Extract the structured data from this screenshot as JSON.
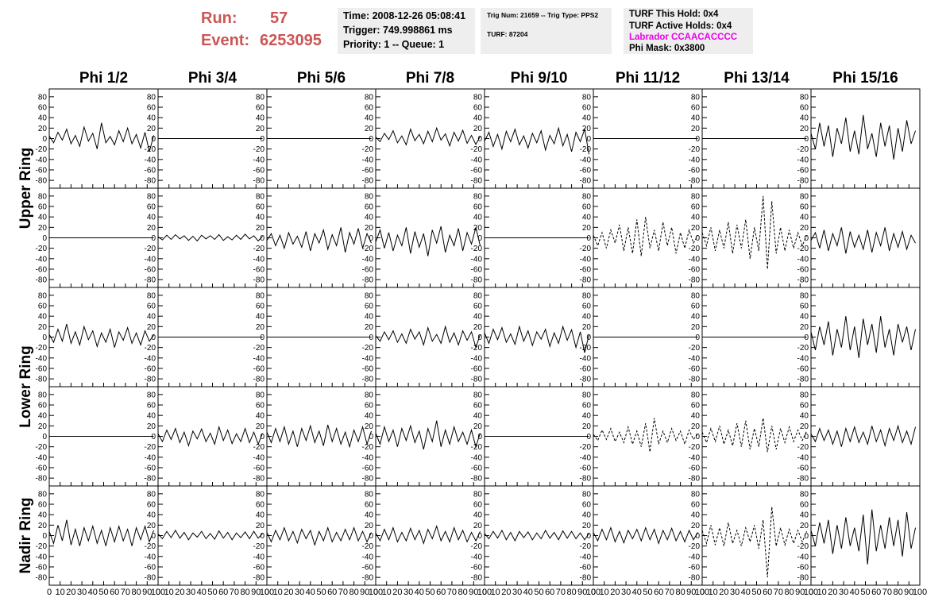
{
  "header": {
    "run_label": "Run:",
    "run": 57,
    "event_label": "Event:",
    "event": 6253095,
    "info_1": [
      "Time: 2008-12-26 05:08:41",
      "Trigger: 749.998861 ms",
      "Priority: 1 -- Queue: 1"
    ],
    "info_2": [
      "Trig Num: 21659 -- Trig Type: PPS2",
      "TURF: 87204"
    ],
    "info_3": [
      "TURF This Hold: 0x4",
      "TURF Active Holds: 0x4",
      "Labrador CCAACACCCC",
      "Phi Mask: 0x3800"
    ]
  },
  "chart_data": {
    "type": "line",
    "color": "#000000",
    "column_titles": [
      "Phi 1/2",
      "Phi 3/4",
      "Phi 5/6",
      "Phi 7/8",
      "Phi 9/10",
      "Phi 11/12",
      "Phi 13/14",
      "Phi 15/16"
    ],
    "row_titles": [
      "Upper Ring",
      "Lower Ring",
      "Nadir Ring"
    ],
    "x": [
      0,
      4,
      8,
      12,
      16,
      20,
      24,
      28,
      32,
      36,
      40,
      44,
      48,
      52,
      56,
      60,
      64,
      68,
      72,
      76,
      80,
      84,
      88,
      92,
      96
    ],
    "xlim": [
      0,
      100
    ],
    "ylim": [
      -95,
      95
    ],
    "xticks": [
      0,
      10,
      20,
      30,
      40,
      50,
      60,
      70,
      80,
      90,
      100
    ],
    "yticks": [
      -80,
      -60,
      -40,
      -20,
      0,
      20,
      40,
      60,
      80
    ],
    "panels": [
      [
        {
          "values": [
            5,
            -8,
            12,
            -3,
            18,
            -10,
            6,
            -15,
            22,
            -5,
            10,
            -20,
            30,
            -8,
            4,
            -12,
            15,
            -6,
            20,
            -10,
            8,
            -18,
            12,
            -25,
            6
          ]
        },
        {
          "values": [
            0,
            0,
            0,
            0,
            0,
            0,
            0,
            0,
            0,
            0,
            0,
            0,
            0,
            0,
            0,
            0,
            0,
            0,
            0,
            0,
            0,
            0,
            0,
            0,
            0
          ]
        },
        {
          "values": [
            0,
            0,
            0,
            0,
            0,
            0,
            0,
            0,
            0,
            0,
            0,
            0,
            0,
            0,
            0,
            0,
            0,
            0,
            0,
            0,
            0,
            0,
            0,
            0,
            0
          ]
        },
        {
          "values": [
            3,
            -6,
            10,
            -2,
            15,
            -8,
            5,
            -12,
            18,
            -4,
            8,
            -10,
            14,
            -6,
            20,
            -3,
            9,
            -14,
            12,
            -5,
            16,
            -9,
            6,
            -11,
            4
          ]
        },
        {
          "values": [
            -5,
            12,
            -15,
            8,
            -20,
            14,
            -6,
            18,
            -12,
            5,
            -18,
            10,
            -8,
            15,
            -22,
            6,
            -10,
            20,
            -14,
            8,
            -25,
            12,
            -6,
            18,
            -30
          ]
        },
        {
          "values": [
            0,
            0,
            0,
            0,
            0,
            0,
            0,
            0,
            0,
            0,
            0,
            0,
            0,
            0,
            0,
            0,
            0,
            0,
            0,
            0,
            0,
            0,
            0,
            0,
            0
          ]
        },
        {
          "values": [
            0,
            0,
            0,
            0,
            0,
            0,
            0,
            0,
            0,
            0,
            0,
            0,
            0,
            0,
            0,
            0,
            0,
            0,
            0,
            0,
            0,
            0,
            0,
            0,
            0
          ]
        },
        {
          "values": [
            10,
            -20,
            30,
            -15,
            25,
            -35,
            20,
            -10,
            40,
            -25,
            15,
            -30,
            45,
            -20,
            10,
            -35,
            30,
            -15,
            25,
            -40,
            20,
            -25,
            35,
            -10,
            15
          ]
        }
      ],
      [
        {
          "values": [
            0,
            0,
            0,
            0,
            0,
            0,
            0,
            0,
            0,
            0,
            0,
            0,
            0,
            0,
            0,
            0,
            0,
            0,
            0,
            0,
            0,
            0,
            0,
            0,
            0
          ]
        },
        {
          "values": [
            2,
            -4,
            5,
            -3,
            6,
            -2,
            4,
            -5,
            3,
            -6,
            5,
            -2,
            4,
            -3,
            6,
            -5,
            2,
            -4,
            5,
            -3,
            7,
            -2,
            4,
            -6,
            3
          ]
        },
        {
          "values": [
            -5,
            8,
            -15,
            5,
            -20,
            10,
            -12,
            3,
            -18,
            12,
            -25,
            8,
            -10,
            15,
            -22,
            6,
            -15,
            20,
            -28,
            10,
            -12,
            18,
            -20,
            8,
            -10
          ]
        },
        {
          "values": [
            -8,
            15,
            -20,
            10,
            -25,
            5,
            -15,
            20,
            -30,
            12,
            -18,
            8,
            -35,
            15,
            -10,
            22,
            -28,
            5,
            -15,
            18,
            -25,
            10,
            -12,
            20,
            -15
          ]
        },
        {
          "values": [
            0,
            0,
            0,
            0,
            0,
            0,
            0,
            0,
            0,
            0,
            0,
            0,
            0,
            0,
            0,
            0,
            0,
            0,
            0,
            0,
            0,
            0,
            0,
            0,
            0
          ]
        },
        {
          "values": [
            5,
            -15,
            10,
            -20,
            15,
            -10,
            25,
            -25,
            20,
            -30,
            35,
            -35,
            40,
            -20,
            15,
            -25,
            30,
            -15,
            20,
            -30,
            10,
            -20,
            15,
            -10,
            5
          ],
          "dashed": true
        },
        {
          "values": [
            10,
            -15,
            20,
            -25,
            15,
            -20,
            30,
            -30,
            25,
            -20,
            35,
            -40,
            20,
            -25,
            80,
            -60,
            70,
            -30,
            20,
            -25,
            15,
            -20,
            10,
            -15,
            5
          ],
          "dashed": true
        },
        {
          "values": [
            -5,
            10,
            -20,
            15,
            -25,
            8,
            -15,
            20,
            -30,
            12,
            -18,
            5,
            -22,
            15,
            -28,
            10,
            -15,
            20,
            -25,
            8,
            -18,
            12,
            -22,
            5,
            -10
          ]
        }
      ],
      [
        {
          "values": [
            5,
            -10,
            15,
            -8,
            25,
            -12,
            10,
            -15,
            20,
            -5,
            12,
            -18,
            8,
            -10,
            15,
            -20,
            10,
            -6,
            18,
            -12,
            8,
            -15,
            12,
            -8,
            4
          ]
        },
        {
          "values": [
            0,
            0,
            0,
            0,
            0,
            0,
            0,
            0,
            0,
            0,
            0,
            0,
            0,
            0,
            0,
            0,
            0,
            0,
            0,
            0,
            0,
            0,
            0,
            0,
            0
          ]
        },
        {
          "values": [
            0,
            0,
            0,
            0,
            0,
            0,
            0,
            0,
            0,
            0,
            0,
            0,
            0,
            0,
            0,
            0,
            0,
            0,
            0,
            0,
            0,
            0,
            0,
            0,
            0
          ]
        },
        {
          "values": [
            3,
            -8,
            10,
            -5,
            12,
            -10,
            6,
            -12,
            15,
            -4,
            10,
            -15,
            18,
            -8,
            5,
            -12,
            20,
            -10,
            8,
            -15,
            12,
            -6,
            10,
            -20,
            5
          ]
        },
        {
          "values": [
            8,
            -12,
            15,
            -5,
            18,
            -10,
            6,
            -14,
            20,
            -8,
            12,
            -16,
            10,
            -4,
            15,
            -18,
            8,
            -12,
            20,
            -6,
            14,
            -20,
            10,
            -30,
            5
          ]
        },
        {
          "values": [
            0,
            0,
            0,
            0,
            0,
            0,
            0,
            0,
            0,
            0,
            0,
            0,
            0,
            0,
            0,
            0,
            0,
            0,
            0,
            0,
            0,
            0,
            0,
            0,
            0
          ]
        },
        {
          "values": [
            0,
            0,
            0,
            0,
            0,
            0,
            0,
            0,
            0,
            0,
            0,
            0,
            0,
            0,
            0,
            0,
            0,
            0,
            0,
            0,
            0,
            0,
            0,
            0,
            0
          ]
        },
        {
          "values": [
            10,
            -25,
            20,
            -15,
            30,
            -35,
            15,
            -20,
            40,
            -25,
            20,
            -40,
            35,
            -15,
            25,
            -30,
            40,
            -20,
            15,
            -35,
            25,
            -10,
            20,
            -25,
            15
          ]
        }
      ],
      [
        {
          "values": [
            0,
            0,
            0,
            0,
            0,
            0,
            0,
            0,
            0,
            0,
            0,
            0,
            0,
            0,
            0,
            0,
            0,
            0,
            0,
            0,
            0,
            0,
            0,
            0,
            0
          ]
        },
        {
          "values": [
            5,
            -10,
            12,
            -6,
            15,
            -12,
            8,
            -18,
            10,
            -5,
            14,
            -10,
            6,
            -15,
            18,
            -8,
            12,
            -14,
            5,
            -10,
            15,
            -12,
            8,
            -15,
            6
          ]
        },
        {
          "values": [
            8,
            -12,
            15,
            -10,
            18,
            -15,
            10,
            -20,
            15,
            -8,
            20,
            -12,
            10,
            -18,
            22,
            -10,
            15,
            -15,
            8,
            -20,
            12,
            -10,
            18,
            -15,
            10
          ]
        },
        {
          "values": [
            6,
            -15,
            18,
            -10,
            12,
            -20,
            15,
            -8,
            20,
            -12,
            10,
            -25,
            15,
            -10,
            30,
            -20,
            12,
            -15,
            18,
            -10,
            8,
            -15,
            12,
            -20,
            6
          ]
        },
        {
          "values": [
            0,
            0,
            0,
            0,
            0,
            0,
            0,
            0,
            0,
            0,
            0,
            0,
            0,
            0,
            0,
            0,
            0,
            0,
            0,
            0,
            0,
            0,
            0,
            0,
            0
          ]
        },
        {
          "values": [
            4,
            -8,
            12,
            -6,
            15,
            -10,
            8,
            -12,
            18,
            -15,
            10,
            -20,
            25,
            -30,
            35,
            -15,
            10,
            -12,
            15,
            -8,
            10,
            -15,
            12,
            -6,
            5
          ],
          "dashed": true
        },
        {
          "values": [
            8,
            -12,
            15,
            -10,
            20,
            -15,
            12,
            -18,
            25,
            -20,
            30,
            -25,
            15,
            -20,
            35,
            -30,
            20,
            -25,
            15,
            -12,
            18,
            -10,
            12,
            -8,
            10
          ],
          "dashed": true
        },
        {
          "values": [
            5,
            -10,
            15,
            -8,
            12,
            -15,
            10,
            -20,
            15,
            -10,
            18,
            -12,
            8,
            -15,
            20,
            -10,
            12,
            -18,
            15,
            -8,
            20,
            -12,
            10,
            -15,
            18
          ]
        }
      ],
      [
        {
          "values": [
            8,
            -15,
            20,
            -10,
            30,
            -18,
            12,
            -20,
            15,
            -10,
            18,
            -15,
            10,
            -20,
            15,
            -12,
            18,
            -10,
            12,
            -20,
            15,
            -8,
            18,
            -12,
            10
          ]
        },
        {
          "values": [
            3,
            -6,
            8,
            -4,
            10,
            -5,
            6,
            -8,
            5,
            -3,
            8,
            -6,
            4,
            -7,
            9,
            -5,
            6,
            -8,
            5,
            -4,
            7,
            -6,
            8,
            -5,
            4
          ]
        },
        {
          "values": [
            6,
            -12,
            10,
            -8,
            15,
            -10,
            8,
            -14,
            12,
            -6,
            10,
            -18,
            8,
            -10,
            15,
            -12,
            6,
            -10,
            12,
            -8,
            15,
            -10,
            8,
            -12,
            6
          ]
        },
        {
          "values": [
            5,
            -10,
            12,
            -8,
            15,
            -12,
            6,
            -10,
            14,
            -8,
            10,
            -15,
            12,
            -6,
            18,
            -10,
            8,
            -12,
            15,
            -8,
            10,
            -12,
            6,
            -10,
            8
          ]
        },
        {
          "values": [
            4,
            -6,
            8,
            -5,
            10,
            -8,
            6,
            -10,
            8,
            -4,
            7,
            -8,
            5,
            -6,
            10,
            -5,
            6,
            -8,
            9,
            -5,
            8,
            -6,
            5,
            -8,
            4
          ]
        },
        {
          "values": [
            6,
            -10,
            12,
            -8,
            15,
            -12,
            8,
            -14,
            10,
            -6,
            12,
            -10,
            15,
            -8,
            12,
            -15,
            10,
            -8,
            14,
            -10,
            8,
            -12,
            10,
            -8,
            6
          ]
        },
        {
          "values": [
            10,
            -15,
            20,
            -18,
            15,
            -20,
            25,
            -15,
            10,
            -20,
            15,
            -12,
            20,
            -25,
            30,
            -80,
            55,
            -20,
            15,
            -18,
            12,
            -15,
            10,
            -12,
            8
          ],
          "dashed": true
        },
        {
          "values": [
            10,
            -20,
            25,
            -15,
            30,
            -35,
            20,
            -25,
            35,
            -20,
            15,
            -30,
            40,
            -55,
            50,
            -30,
            20,
            -25,
            35,
            -20,
            30,
            -40,
            45,
            -25,
            15
          ]
        }
      ]
    ]
  }
}
